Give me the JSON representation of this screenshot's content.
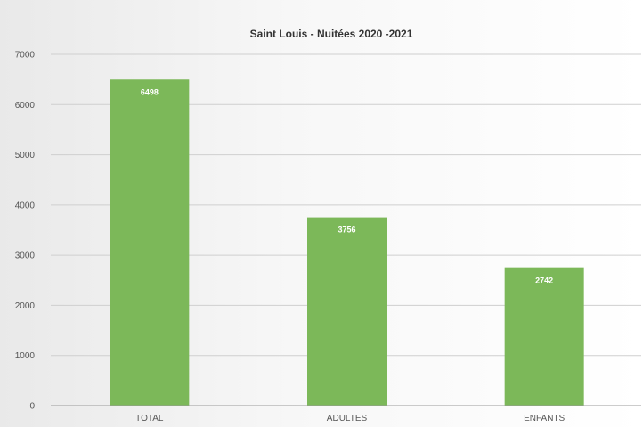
{
  "chart_data": {
    "type": "bar",
    "title": "Saint Louis - Nuitées 2020 -2021",
    "categories": [
      "TOTAL",
      "ADULTES",
      "ENFANTS"
    ],
    "values": [
      6498,
      3756,
      2742
    ],
    "ylim": [
      0,
      7000
    ],
    "yticks": [
      0,
      1000,
      2000,
      3000,
      4000,
      5000,
      6000,
      7000
    ],
    "grid": true,
    "legend": "none",
    "bar_color": "#7cb859",
    "data_label_color": "#ffffff"
  }
}
